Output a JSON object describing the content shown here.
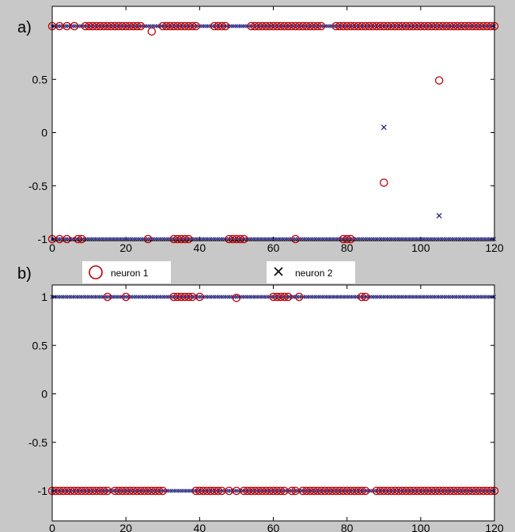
{
  "figure": {
    "panel_labels": [
      "a)",
      "b)"
    ]
  },
  "legend": {
    "entries": [
      {
        "label": "neuron 1",
        "marker": "o",
        "color": "#c00000"
      },
      {
        "label": "neuron 2",
        "marker": "x",
        "color": "#1a1a7a"
      }
    ]
  },
  "colors": {
    "background": "#c8c8c8",
    "axes_face": "#ffffff",
    "neuron1": "#c00000",
    "neuron2": "#1a1a7a"
  },
  "chart_data": [
    {
      "panel": "a)",
      "type": "scatter",
      "title": "",
      "xlabel": "",
      "ylabel": "",
      "xlim": [
        0,
        120
      ],
      "ylim": [
        -1,
        1
      ],
      "xticks": [
        0,
        20,
        40,
        60,
        80,
        100,
        120
      ],
      "yticks": [
        -1,
        -0.5,
        0,
        0.5,
        1
      ],
      "ytick_labels": [
        "-1",
        "-0.5",
        "0",
        "0.5",
        ""
      ],
      "grid": false,
      "series": [
        {
          "name": "neuron 1",
          "marker": "o",
          "points": [
            [
              0,
              1
            ],
            [
              2,
              1
            ],
            [
              4,
              1
            ],
            [
              6,
              1
            ],
            [
              9,
              1
            ],
            [
              10,
              1
            ],
            [
              11,
              1
            ],
            [
              12,
              1
            ],
            [
              13,
              1
            ],
            [
              14,
              1
            ],
            [
              15,
              1
            ],
            [
              16,
              1
            ],
            [
              17,
              1
            ],
            [
              18,
              1
            ],
            [
              19,
              1
            ],
            [
              20,
              1
            ],
            [
              21,
              1
            ],
            [
              22,
              1
            ],
            [
              23,
              1
            ],
            [
              24,
              1
            ],
            [
              30,
              1
            ],
            [
              31,
              1
            ],
            [
              32,
              1
            ],
            [
              33,
              1
            ],
            [
              34,
              1
            ],
            [
              35,
              1
            ],
            [
              36,
              1
            ],
            [
              37,
              1
            ],
            [
              38,
              1
            ],
            [
              39,
              1
            ],
            [
              44,
              1
            ],
            [
              45,
              1
            ],
            [
              46,
              1
            ],
            [
              47,
              1
            ],
            [
              54,
              1
            ],
            [
              55,
              1
            ],
            [
              56,
              1
            ],
            [
              57,
              1
            ],
            [
              58,
              1
            ],
            [
              59,
              1
            ],
            [
              60,
              1
            ],
            [
              61,
              1
            ],
            [
              62,
              1
            ],
            [
              63,
              1
            ],
            [
              64,
              1
            ],
            [
              65,
              1
            ],
            [
              66,
              1
            ],
            [
              67,
              1
            ],
            [
              68,
              1
            ],
            [
              69,
              1
            ],
            [
              70,
              1
            ],
            [
              71,
              1
            ],
            [
              72,
              1
            ],
            [
              73,
              1
            ],
            [
              77,
              1
            ],
            [
              78,
              1
            ],
            [
              79,
              1
            ],
            [
              80,
              1
            ],
            [
              81,
              1
            ],
            [
              82,
              1
            ],
            [
              83,
              1
            ],
            [
              84,
              1
            ],
            [
              85,
              1
            ],
            [
              86,
              1
            ],
            [
              87,
              1
            ],
            [
              88,
              1
            ],
            [
              89,
              1
            ],
            [
              90,
              1
            ],
            [
              91,
              1
            ],
            [
              92,
              1
            ],
            [
              93,
              1
            ],
            [
              94,
              1
            ],
            [
              95,
              1
            ],
            [
              96,
              1
            ],
            [
              97,
              1
            ],
            [
              98,
              1
            ],
            [
              99,
              1
            ],
            [
              100,
              1
            ],
            [
              101,
              1
            ],
            [
              102,
              1
            ],
            [
              103,
              1
            ],
            [
              104,
              1
            ],
            [
              105,
              1
            ],
            [
              106,
              1
            ],
            [
              107,
              1
            ],
            [
              108,
              1
            ],
            [
              109,
              1
            ],
            [
              110,
              1
            ],
            [
              111,
              1
            ],
            [
              112,
              1
            ],
            [
              113,
              1
            ],
            [
              114,
              1
            ],
            [
              115,
              1
            ],
            [
              116,
              1
            ],
            [
              117,
              1
            ],
            [
              118,
              1
            ],
            [
              119,
              1
            ],
            [
              120,
              1
            ],
            [
              27,
              0.95
            ],
            [
              105,
              0.49
            ],
            [
              90,
              -0.47
            ],
            [
              0,
              -1
            ],
            [
              2,
              -1
            ],
            [
              4,
              -1
            ],
            [
              7,
              -1
            ],
            [
              8,
              -1
            ],
            [
              26,
              -1
            ],
            [
              33,
              -1
            ],
            [
              34,
              -1
            ],
            [
              35,
              -1
            ],
            [
              36,
              -1
            ],
            [
              37,
              -1
            ],
            [
              48,
              -1
            ],
            [
              49,
              -1
            ],
            [
              50,
              -1
            ],
            [
              51,
              -1
            ],
            [
              52,
              -1
            ],
            [
              66,
              -1
            ],
            [
              79,
              -1
            ],
            [
              80,
              -1
            ],
            [
              81,
              -1
            ]
          ]
        },
        {
          "name": "neuron 2",
          "marker": "x",
          "points": [
            [
              90,
              0.05
            ],
            [
              105,
              -0.78
            ]
          ],
          "dense_line_y": [
            1,
            -1
          ]
        }
      ]
    },
    {
      "panel": "b)",
      "type": "scatter",
      "title": "",
      "xlabel": "",
      "ylabel": "",
      "xlim": [
        0,
        120
      ],
      "ylim": [
        -1,
        1
      ],
      "xticks": [
        0,
        20,
        40,
        60,
        80,
        100,
        120
      ],
      "yticks": [
        -1,
        -0.5,
        0,
        0.5,
        1
      ],
      "ytick_labels": [
        "-1",
        "-0.5",
        "0",
        "0.5",
        "1"
      ],
      "grid": false,
      "series": [
        {
          "name": "neuron 1",
          "marker": "o",
          "points": [
            [
              15,
              1
            ],
            [
              20,
              1
            ],
            [
              33,
              1
            ],
            [
              34,
              1
            ],
            [
              35,
              1
            ],
            [
              36,
              1
            ],
            [
              37,
              1
            ],
            [
              38,
              1
            ],
            [
              40,
              1
            ],
            [
              50,
              0.99
            ],
            [
              60,
              1
            ],
            [
              61,
              1
            ],
            [
              62,
              1
            ],
            [
              63,
              1
            ],
            [
              64,
              1
            ],
            [
              67,
              1
            ],
            [
              84,
              1
            ],
            [
              85,
              1
            ],
            [
              0,
              -1
            ],
            [
              1,
              -1
            ],
            [
              2,
              -1
            ],
            [
              3,
              -1
            ],
            [
              4,
              -1
            ],
            [
              5,
              -1
            ],
            [
              6,
              -1
            ],
            [
              7,
              -1
            ],
            [
              8,
              -1
            ],
            [
              9,
              -1
            ],
            [
              10,
              -1
            ],
            [
              11,
              -1
            ],
            [
              12,
              -1
            ],
            [
              13,
              -1
            ],
            [
              14,
              -1
            ],
            [
              15,
              -1
            ],
            [
              17,
              -1
            ],
            [
              18,
              -1
            ],
            [
              19,
              -1
            ],
            [
              20,
              -1
            ],
            [
              21,
              -1
            ],
            [
              22,
              -1
            ],
            [
              23,
              -1
            ],
            [
              24,
              -1
            ],
            [
              25,
              -1
            ],
            [
              26,
              -1
            ],
            [
              27,
              -1
            ],
            [
              28,
              -1
            ],
            [
              29,
              -1
            ],
            [
              30,
              -1
            ],
            [
              39,
              -1
            ],
            [
              40,
              -1
            ],
            [
              41,
              -1
            ],
            [
              42,
              -1
            ],
            [
              43,
              -1
            ],
            [
              44,
              -1
            ],
            [
              45,
              -1
            ],
            [
              46,
              -1
            ],
            [
              48,
              -1
            ],
            [
              50,
              -1
            ],
            [
              52,
              -1
            ],
            [
              53,
              -1
            ],
            [
              54,
              -1
            ],
            [
              55,
              -1
            ],
            [
              56,
              -1
            ],
            [
              57,
              -1
            ],
            [
              58,
              -1
            ],
            [
              59,
              -1
            ],
            [
              60,
              -1
            ],
            [
              61,
              -1
            ],
            [
              62,
              -1
            ],
            [
              63,
              -1
            ],
            [
              65,
              -1
            ],
            [
              66,
              -1
            ],
            [
              68,
              -1
            ],
            [
              69,
              -1
            ],
            [
              70,
              -1
            ],
            [
              71,
              -1
            ],
            [
              72,
              -1
            ],
            [
              73,
              -1
            ],
            [
              74,
              -1
            ],
            [
              75,
              -1
            ],
            [
              76,
              -1
            ],
            [
              77,
              -1
            ],
            [
              78,
              -1
            ],
            [
              79,
              -1
            ],
            [
              80,
              -1
            ],
            [
              81,
              -1
            ],
            [
              82,
              -1
            ],
            [
              83,
              -1
            ],
            [
              84,
              -1
            ],
            [
              85,
              -1
            ],
            [
              88,
              -1
            ],
            [
              89,
              -1
            ],
            [
              90,
              -1
            ],
            [
              91,
              -1
            ],
            [
              92,
              -1
            ],
            [
              93,
              -1
            ],
            [
              94,
              -1
            ],
            [
              95,
              -1
            ],
            [
              96,
              -1
            ],
            [
              97,
              -1
            ],
            [
              98,
              -1
            ],
            [
              99,
              -1
            ],
            [
              100,
              -1
            ],
            [
              101,
              -1
            ],
            [
              102,
              -1
            ],
            [
              103,
              -1
            ],
            [
              104,
              -1
            ],
            [
              105,
              -1
            ],
            [
              106,
              -1
            ],
            [
              107,
              -1
            ],
            [
              108,
              -1
            ],
            [
              109,
              -1
            ],
            [
              110,
              -1
            ],
            [
              111,
              -1
            ],
            [
              112,
              -1
            ],
            [
              113,
              -1
            ],
            [
              114,
              -1
            ],
            [
              115,
              -1
            ],
            [
              116,
              -1
            ],
            [
              117,
              -1
            ],
            [
              118,
              -1
            ],
            [
              119,
              -1
            ],
            [
              120,
              -1
            ]
          ]
        },
        {
          "name": "neuron 2",
          "marker": "x",
          "points": [],
          "dense_line_y": [
            1,
            -1
          ]
        }
      ]
    }
  ]
}
